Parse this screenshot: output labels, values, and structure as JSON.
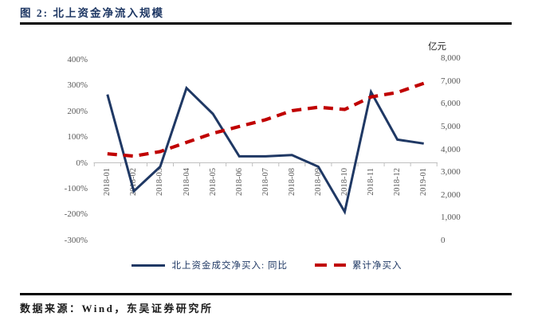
{
  "figure": {
    "title": "图 2: 北上资金净流入规模",
    "source_note": "数据来源：Wind，东吴证券研究所"
  },
  "colors": {
    "title_text": "#1f3864",
    "rule": "#000000",
    "primary_line": "#1f3864",
    "secondary_line": "#c00000",
    "axis_text": "#595959",
    "axis_line": "#bfbfbf",
    "legend_text": "#1f3864"
  },
  "chart_data": {
    "type": "line",
    "title": "北上资金净流入规模",
    "categories": [
      "2018-01",
      "2018-02",
      "2018-03",
      "2018-04",
      "2018-05",
      "2018-06",
      "2018-07",
      "2018-08",
      "2018-09",
      "2018-10",
      "2018-11",
      "2018-12",
      "2019-01"
    ],
    "series": [
      {
        "name": "北上资金成交净买入: 同比",
        "axis": "left",
        "style": "solid",
        "color": "#1f3864",
        "values": [
          265,
          -110,
          -15,
          290,
          190,
          25,
          25,
          30,
          -15,
          -190,
          275,
          90,
          75
        ]
      },
      {
        "name": "累计净买入",
        "axis": "right",
        "style": "dashed",
        "color": "#c00000",
        "values": [
          3800,
          3700,
          3900,
          4300,
          4700,
          5000,
          5300,
          5700,
          5850,
          5750,
          6300,
          6500,
          6900
        ]
      }
    ],
    "left_axis": {
      "ticks": [
        "400%",
        "300%",
        "200%",
        "100%",
        "0%",
        "-100%",
        "-200%",
        "-300%"
      ],
      "min": -300,
      "max": 400,
      "format": "percent"
    },
    "right_axis": {
      "unit": "亿元",
      "ticks": [
        "8,000",
        "7,000",
        "6,000",
        "5,000",
        "4,000",
        "3,000",
        "2,000",
        "1,000",
        "0"
      ],
      "min": 0,
      "max": 8000
    },
    "legend_position": "bottom",
    "grid": false
  }
}
